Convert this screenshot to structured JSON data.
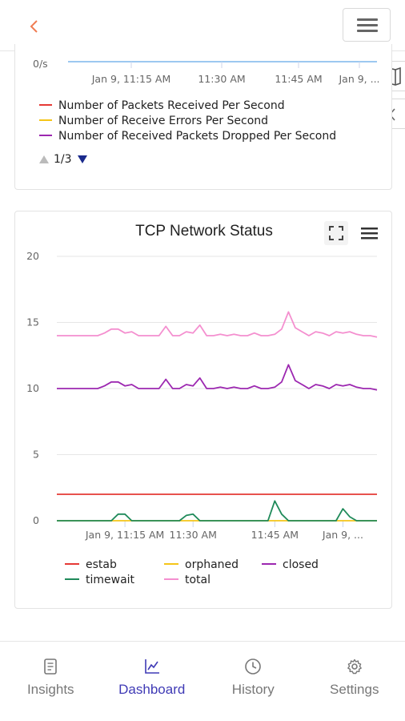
{
  "header": {
    "back_icon": "chevron-left-icon",
    "menu_icon": "hamburger-icon",
    "accent": "#f07c52"
  },
  "side_tabs": [
    {
      "icon": "map-icon"
    },
    {
      "icon": "chevron-left-icon"
    }
  ],
  "packets_chart": {
    "y_tick_label": "0/s",
    "x_tick_labels": [
      "Jan 9, 11:15 AM",
      "11:30 AM",
      "11:45 AM",
      "Jan 9, ..."
    ],
    "legend": [
      {
        "name": "Number of Packets Received Per Second",
        "color": "#e53935"
      },
      {
        "name": "Number of Receive Errors Per Second",
        "color": "#f5c518"
      },
      {
        "name": "Number of Received Packets Dropped Per Second",
        "color": "#9c27b0"
      }
    ],
    "legend_page": "1/3"
  },
  "chart_data": {
    "type": "line",
    "title": "TCP Network Status",
    "ylim": [
      0,
      20
    ],
    "y_ticks": [
      0,
      5,
      10,
      15,
      20
    ],
    "x_tick_labels": [
      "Jan 9, 11:15 AM",
      "11:30 AM",
      "11:45 AM",
      "Jan 9, ..."
    ],
    "x_tick_index": [
      10,
      20,
      32,
      42
    ],
    "series": [
      {
        "name": "estab",
        "color": "#e53935",
        "values": [
          2,
          2,
          2,
          2,
          2,
          2,
          2,
          2,
          2,
          2,
          2,
          2,
          2,
          2,
          2,
          2,
          2,
          2,
          2,
          2,
          2,
          2,
          2,
          2,
          2,
          2,
          2,
          2,
          2,
          2,
          2,
          2,
          2,
          2,
          2,
          2,
          2,
          2,
          2,
          2,
          2,
          2,
          2,
          2,
          2,
          2,
          2,
          2
        ]
      },
      {
        "name": "orphaned",
        "color": "#f5c518",
        "values": [
          0,
          0,
          0,
          0,
          0,
          0,
          0,
          0,
          0,
          0,
          0,
          0,
          0,
          0,
          0,
          0,
          0,
          0,
          0,
          0,
          0,
          0,
          0,
          0,
          0,
          0,
          0,
          0,
          0,
          0,
          0,
          0,
          0,
          0,
          0,
          0,
          0,
          0,
          0,
          0,
          0,
          0,
          0,
          0,
          0,
          0,
          0,
          0
        ]
      },
      {
        "name": "closed",
        "color": "#9c27b0",
        "values": [
          10,
          10,
          10,
          10,
          10,
          10,
          10,
          10.2,
          10.5,
          10.5,
          10.2,
          10.3,
          10,
          10,
          10,
          10,
          10.7,
          10,
          10,
          10.3,
          10.2,
          10.8,
          10,
          10,
          10.1,
          10,
          10.1,
          10,
          10,
          10.2,
          10,
          10,
          10.1,
          10.5,
          11.8,
          10.6,
          10.3,
          10,
          10.3,
          10.2,
          10,
          10.3,
          10.2,
          10.3,
          10.1,
          10,
          10,
          9.9
        ]
      },
      {
        "name": "timewait",
        "color": "#1f8a5a",
        "values": [
          0,
          0,
          0,
          0,
          0,
          0,
          0,
          0,
          0,
          0.5,
          0.5,
          0,
          0,
          0,
          0,
          0,
          0,
          0,
          0,
          0.4,
          0.5,
          0,
          0,
          0,
          0,
          0,
          0,
          0,
          0,
          0,
          0,
          0,
          1.5,
          0.5,
          0,
          0,
          0,
          0,
          0,
          0,
          0,
          0,
          0.9,
          0.3,
          0,
          0,
          0,
          0
        ]
      },
      {
        "name": "total",
        "color": "#f48fcf",
        "values": [
          14,
          14,
          14,
          14,
          14,
          14,
          14,
          14.2,
          14.5,
          14.5,
          14.2,
          14.3,
          14,
          14,
          14,
          14,
          14.7,
          14,
          14,
          14.3,
          14.2,
          14.8,
          14,
          14,
          14.1,
          14,
          14.1,
          14,
          14,
          14.2,
          14,
          14,
          14.1,
          14.5,
          15.8,
          14.6,
          14.3,
          14,
          14.3,
          14.2,
          14,
          14.3,
          14.2,
          14.3,
          14.1,
          14,
          14,
          13.9
        ]
      }
    ],
    "legend_placement": "bottom",
    "grid": true
  },
  "chart_toolbar": {
    "fullscreen_icon": "fullscreen-icon",
    "menu_icon": "hamburger-icon"
  },
  "nav": {
    "items": [
      {
        "label": "Insights",
        "icon": "document-icon"
      },
      {
        "label": "Dashboard",
        "icon": "chart-line-icon"
      },
      {
        "label": "History",
        "icon": "clock-icon"
      },
      {
        "label": "Settings",
        "icon": "gear-icon"
      }
    ],
    "active_color": "#3f3ab5",
    "inactive_color": "#777777"
  }
}
